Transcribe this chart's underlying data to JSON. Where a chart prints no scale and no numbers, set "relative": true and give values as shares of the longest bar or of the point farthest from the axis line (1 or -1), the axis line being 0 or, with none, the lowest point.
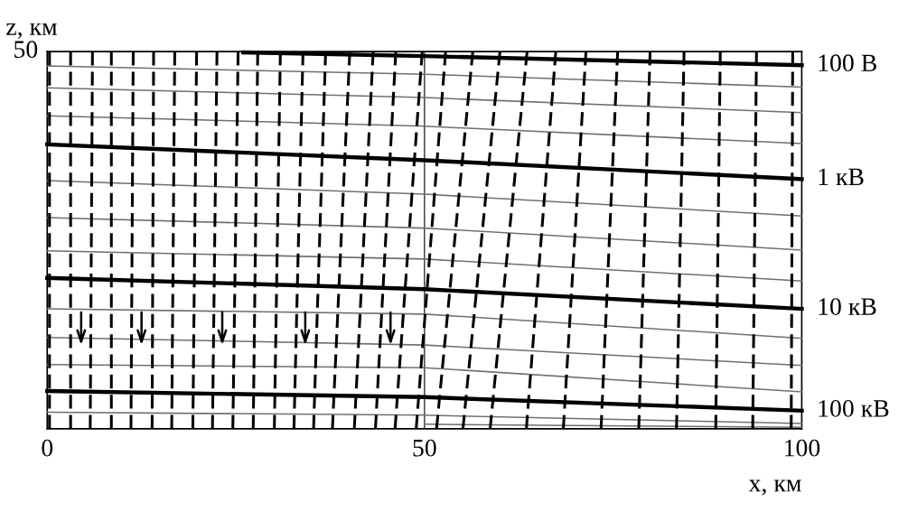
{
  "chart_data": {
    "type": "line",
    "xlabel": "x, км",
    "ylabel": "z, км",
    "relative": true,
    "annotations": [
      "50"
    ],
    "xlim": [
      0,
      100
    ],
    "xticks": [
      0,
      50,
      100
    ],
    "ref_lines": [
      {
        "axis": "x",
        "value": 50,
        "color": "#000000"
      }
    ],
    "series": [
      {
        "name": "100 В",
        "color": "#000000",
        "x": [
          26,
          50,
          100
        ],
        "values": [
          0.998,
          0.988,
          0.964
        ]
      },
      {
        "name": "1 кВ",
        "color": "#000000",
        "x": [
          0,
          50,
          100
        ],
        "values": [
          0.754,
          0.712,
          0.662
        ]
      },
      {
        "name": "10 кВ",
        "color": "#000000",
        "x": [
          0,
          50,
          100
        ],
        "values": [
          0.4,
          0.37,
          0.318
        ]
      },
      {
        "name": "100 кВ",
        "color": "#000000",
        "x": [
          0,
          50,
          100
        ],
        "values": [
          0.1,
          0.084,
          0.048
        ]
      },
      {
        "color": "#707070",
        "x": [
          0,
          50,
          100
        ],
        "values": [
          0.962,
          0.94,
          0.906
        ]
      },
      {
        "color": "#707070",
        "x": [
          0,
          50,
          100
        ],
        "values": [
          0.904,
          0.878,
          0.838
        ]
      },
      {
        "color": "#707070",
        "x": [
          0,
          50,
          100
        ],
        "values": [
          0.83,
          0.802,
          0.756
        ]
      },
      {
        "color": "#707070",
        "x": [
          0,
          50,
          100
        ],
        "values": [
          0.658,
          0.622,
          0.564
        ]
      },
      {
        "color": "#707070",
        "x": [
          0,
          50,
          100
        ],
        "values": [
          0.56,
          0.532,
          0.474
        ]
      },
      {
        "color": "#707070",
        "x": [
          0,
          50,
          100
        ],
        "values": [
          0.472,
          0.45,
          0.392
        ]
      },
      {
        "color": "#707070",
        "x": [
          0,
          50,
          100
        ],
        "values": [
          0.318,
          0.304,
          0.24
        ]
      },
      {
        "color": "#707070",
        "x": [
          0,
          50,
          100
        ],
        "values": [
          0.242,
          0.222,
          0.168
        ]
      },
      {
        "color": "#707070",
        "x": [
          0,
          50,
          100
        ],
        "values": [
          0.17,
          0.162,
          0.098
        ]
      },
      {
        "color": "#707070",
        "x": [
          0,
          50,
          100
        ],
        "values": [
          0.044,
          0.036,
          0.014
        ]
      },
      {
        "color": "#707070",
        "x": [
          50,
          100
        ],
        "values": [
          0.012,
          0.004
        ]
      },
      {
        "color": "#000000",
        "line_style": "dashed",
        "x": [
          0.3,
          0.3
        ],
        "values": [
          1,
          0
        ]
      },
      {
        "color": "#000000",
        "line_style": "dashed",
        "x": [
          3.1,
          3.1
        ],
        "values": [
          1,
          0
        ]
      },
      {
        "color": "#000000",
        "line_style": "dashed",
        "x": [
          6.0,
          5.7
        ],
        "values": [
          1,
          0
        ]
      },
      {
        "color": "#000000",
        "line_style": "dashed",
        "x": [
          8.5,
          8.5
        ],
        "values": [
          1,
          0
        ]
      },
      {
        "color": "#000000",
        "line_style": "dashed",
        "x": [
          11.4,
          11.1
        ],
        "values": [
          1,
          0
        ]
      },
      {
        "color": "#000000",
        "line_style": "dashed",
        "x": [
          14.1,
          13.9
        ],
        "values": [
          1,
          0
        ]
      },
      {
        "color": "#000000",
        "line_style": "dashed",
        "x": [
          16.9,
          16.5
        ],
        "values": [
          1,
          0
        ]
      },
      {
        "color": "#000000",
        "line_style": "dashed",
        "x": [
          19.8,
          19.3
        ],
        "values": [
          1,
          0
        ]
      },
      {
        "color": "#000000",
        "line_style": "dashed",
        "x": [
          22.5,
          21.9
        ],
        "values": [
          1,
          0
        ]
      },
      {
        "color": "#000000",
        "line_style": "dashed",
        "x": [
          25.3,
          24.6
        ],
        "values": [
          1,
          0
        ]
      },
      {
        "color": "#000000",
        "line_style": "dashed",
        "x": [
          27.9,
          27.3
        ],
        "values": [
          1,
          0
        ]
      },
      {
        "color": "#000000",
        "line_style": "dashed",
        "x": [
          30.9,
          30.1
        ],
        "values": [
          1,
          0
        ]
      },
      {
        "color": "#000000",
        "line_style": "dashed",
        "x": [
          33.9,
          32.7
        ],
        "values": [
          1,
          0
        ]
      },
      {
        "color": "#000000",
        "line_style": "dashed",
        "x": [
          36.9,
          35.3
        ],
        "values": [
          1,
          0
        ]
      },
      {
        "color": "#000000",
        "line_style": "dashed",
        "x": [
          40.1,
          37.8
        ],
        "values": [
          1,
          0
        ]
      },
      {
        "color": "#000000",
        "line_style": "dashed",
        "x": [
          43.2,
          40.7
        ],
        "values": [
          1,
          0
        ]
      },
      {
        "color": "#000000",
        "line_style": "dashed",
        "x": [
          46.2,
          43.5
        ],
        "values": [
          1,
          0
        ]
      },
      {
        "color": "#000000",
        "line_style": "dashed",
        "x": [
          49.7,
          46.1
        ],
        "values": [
          1,
          0
        ]
      },
      {
        "color": "#000000",
        "line_style": "dashed",
        "x": [
          52.8,
          48.9
        ],
        "values": [
          1,
          0
        ]
      },
      {
        "color": "#000000",
        "line_style": "dashed",
        "x": [
          56.4,
          51.6
        ],
        "values": [
          1,
          0
        ]
      },
      {
        "color": "#000000",
        "line_style": "dashed",
        "x": [
          60.0,
          55.1
        ],
        "values": [
          1,
          0
        ]
      },
      {
        "color": "#000000",
        "line_style": "dashed",
        "x": [
          63.6,
          58.7
        ],
        "values": [
          1,
          0
        ]
      },
      {
        "color": "#000000",
        "line_style": "dashed",
        "x": [
          67.4,
          63.5
        ],
        "values": [
          1,
          0
        ]
      },
      {
        "color": "#000000",
        "line_style": "dashed",
        "x": [
          71.4,
          68.4
        ],
        "values": [
          1,
          0
        ]
      },
      {
        "color": "#000000",
        "line_style": "dashed",
        "x": [
          75.6,
          73.4
        ],
        "values": [
          1,
          0
        ]
      },
      {
        "color": "#000000",
        "line_style": "dashed",
        "x": [
          79.9,
          78.4
        ],
        "values": [
          1,
          0
        ]
      },
      {
        "color": "#000000",
        "line_style": "dashed",
        "x": [
          84.4,
          83.4
        ],
        "values": [
          1,
          0
        ]
      },
      {
        "color": "#000000",
        "line_style": "dashed",
        "x": [
          89.2,
          88.6
        ],
        "values": [
          1,
          0
        ]
      },
      {
        "color": "#000000",
        "line_style": "dashed",
        "x": [
          94.0,
          93.5
        ],
        "values": [
          1,
          0
        ]
      },
      {
        "color": "#000000",
        "line_style": "dashed",
        "x": [
          98.8,
          98.6
        ],
        "values": [
          1,
          0
        ]
      }
    ]
  }
}
